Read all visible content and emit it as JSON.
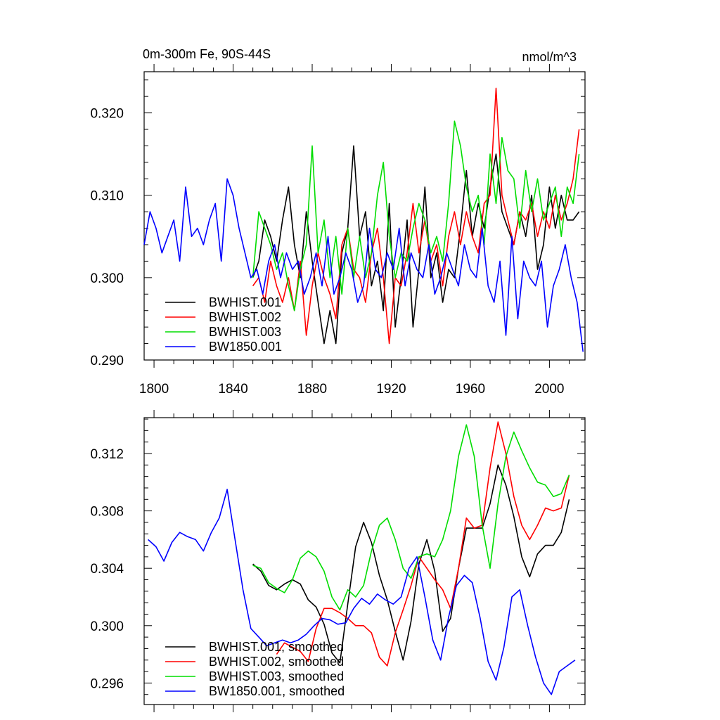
{
  "chart_data": [
    {
      "type": "line",
      "title": "0m-300m Fe, 90S-44S",
      "units": "nmol/m^3",
      "xlim": [
        1795,
        2018
      ],
      "ylim": [
        0.29,
        0.325
      ],
      "xticks": [
        1800,
        1840,
        1880,
        1920,
        1960,
        2000
      ],
      "yticks": [
        0.29,
        0.3,
        0.31,
        0.32
      ],
      "ytick_labels": [
        "0.290",
        "0.300",
        "0.310",
        "0.320"
      ],
      "legend_position": "bottom-left",
      "series": [
        {
          "name": "BWHIST.001",
          "color": "#000000",
          "x": [
            1850,
            1853,
            1856,
            1859,
            1862,
            1865,
            1868,
            1871,
            1874,
            1877,
            1880,
            1883,
            1886,
            1889,
            1892,
            1895,
            1898,
            1901,
            1904,
            1907,
            1910,
            1913,
            1916,
            1919,
            1922,
            1925,
            1928,
            1931,
            1934,
            1937,
            1940,
            1943,
            1946,
            1949,
            1952,
            1955,
            1958,
            1961,
            1964,
            1967,
            1970,
            1973,
            1976,
            1979,
            1982,
            1985,
            1988,
            1991,
            1994,
            1997,
            2000,
            2003,
            2006,
            2009,
            2012,
            2015
          ],
          "values": [
            0.3,
            0.302,
            0.307,
            0.305,
            0.302,
            0.307,
            0.311,
            0.304,
            0.3,
            0.308,
            0.302,
            0.297,
            0.292,
            0.296,
            0.292,
            0.303,
            0.306,
            0.316,
            0.305,
            0.308,
            0.299,
            0.302,
            0.296,
            0.309,
            0.294,
            0.3,
            0.307,
            0.294,
            0.301,
            0.311,
            0.3,
            0.303,
            0.297,
            0.301,
            0.3,
            0.306,
            0.313,
            0.305,
            0.309,
            0.306,
            0.311,
            0.315,
            0.308,
            0.306,
            0.304,
            0.308,
            0.305,
            0.31,
            0.301,
            0.304,
            0.311,
            0.306,
            0.31,
            0.307,
            0.307,
            0.308
          ]
        },
        {
          "name": "BWHIST.002",
          "color": "#ff0000",
          "x": [
            1850,
            1853,
            1856,
            1859,
            1862,
            1865,
            1868,
            1871,
            1874,
            1877,
            1880,
            1883,
            1886,
            1889,
            1892,
            1895,
            1898,
            1901,
            1904,
            1907,
            1910,
            1913,
            1916,
            1919,
            1922,
            1925,
            1928,
            1931,
            1934,
            1937,
            1940,
            1943,
            1946,
            1949,
            1952,
            1955,
            1958,
            1961,
            1964,
            1967,
            1970,
            1973,
            1976,
            1979,
            1982,
            1985,
            1988,
            1991,
            1994,
            1997,
            2000,
            2003,
            2006,
            2009,
            2012,
            2015
          ],
          "values": [
            0.299,
            0.3,
            0.297,
            0.302,
            0.299,
            0.297,
            0.3,
            0.296,
            0.302,
            0.293,
            0.299,
            0.303,
            0.3,
            0.298,
            0.295,
            0.304,
            0.306,
            0.301,
            0.3,
            0.297,
            0.303,
            0.306,
            0.3,
            0.292,
            0.3,
            0.299,
            0.303,
            0.309,
            0.303,
            0.307,
            0.302,
            0.304,
            0.299,
            0.305,
            0.308,
            0.304,
            0.308,
            0.305,
            0.303,
            0.309,
            0.31,
            0.323,
            0.31,
            0.307,
            0.304,
            0.308,
            0.307,
            0.309,
            0.305,
            0.308,
            0.306,
            0.31,
            0.307,
            0.309,
            0.312,
            0.318
          ]
        },
        {
          "name": "BWHIST.003",
          "color": "#00dd00",
          "x": [
            1850,
            1853,
            1856,
            1859,
            1862,
            1865,
            1868,
            1871,
            1874,
            1877,
            1880,
            1883,
            1886,
            1889,
            1892,
            1895,
            1898,
            1901,
            1904,
            1907,
            1910,
            1913,
            1916,
            1919,
            1922,
            1925,
            1928,
            1931,
            1934,
            1937,
            1940,
            1943,
            1946,
            1949,
            1952,
            1955,
            1958,
            1961,
            1964,
            1967,
            1970,
            1973,
            1976,
            1979,
            1982,
            1985,
            1988,
            1991,
            1994,
            1997,
            2000,
            2003,
            2006,
            2009,
            2012,
            2015
          ],
          "values": [
            0.3,
            0.308,
            0.306,
            0.304,
            0.301,
            0.303,
            0.299,
            0.296,
            0.301,
            0.304,
            0.316,
            0.303,
            0.307,
            0.3,
            0.305,
            0.298,
            0.306,
            0.3,
            0.305,
            0.3,
            0.303,
            0.31,
            0.314,
            0.305,
            0.3,
            0.303,
            0.302,
            0.306,
            0.309,
            0.307,
            0.303,
            0.305,
            0.302,
            0.309,
            0.319,
            0.316,
            0.311,
            0.308,
            0.31,
            0.304,
            0.315,
            0.309,
            0.317,
            0.313,
            0.312,
            0.306,
            0.313,
            0.308,
            0.312,
            0.307,
            0.309,
            0.311,
            0.305,
            0.311,
            0.309,
            0.315
          ]
        },
        {
          "name": "BW1850.001",
          "color": "#0000ff",
          "x": [
            1795,
            1798,
            1801,
            1804,
            1807,
            1810,
            1813,
            1816,
            1819,
            1822,
            1825,
            1828,
            1831,
            1834,
            1837,
            1840,
            1843,
            1846,
            1849,
            1852,
            1855,
            1858,
            1861,
            1864,
            1867,
            1870,
            1873,
            1876,
            1879,
            1882,
            1885,
            1888,
            1891,
            1894,
            1897,
            1900,
            1903,
            1906,
            1909,
            1912,
            1915,
            1918,
            1921,
            1924,
            1927,
            1930,
            1933,
            1936,
            1939,
            1942,
            1945,
            1948,
            1951,
            1954,
            1957,
            1960,
            1963,
            1966,
            1969,
            1972,
            1975,
            1978,
            1981,
            1984,
            1987,
            1990,
            1993,
            1996,
            1999,
            2002,
            2005,
            2008,
            2011,
            2014,
            2017
          ],
          "values": [
            0.304,
            0.308,
            0.306,
            0.303,
            0.305,
            0.307,
            0.302,
            0.311,
            0.305,
            0.306,
            0.304,
            0.307,
            0.309,
            0.302,
            0.312,
            0.31,
            0.306,
            0.303,
            0.3,
            0.301,
            0.298,
            0.302,
            0.304,
            0.3,
            0.303,
            0.301,
            0.302,
            0.298,
            0.3,
            0.303,
            0.299,
            0.305,
            0.298,
            0.3,
            0.303,
            0.301,
            0.297,
            0.299,
            0.306,
            0.301,
            0.3,
            0.303,
            0.301,
            0.306,
            0.299,
            0.303,
            0.301,
            0.3,
            0.304,
            0.298,
            0.3,
            0.303,
            0.301,
            0.299,
            0.304,
            0.301,
            0.3,
            0.306,
            0.299,
            0.297,
            0.302,
            0.293,
            0.305,
            0.295,
            0.302,
            0.3,
            0.299,
            0.302,
            0.294,
            0.299,
            0.301,
            0.304,
            0.3,
            0.297,
            0.291
          ]
        }
      ]
    },
    {
      "type": "line",
      "xlim": [
        1795,
        2018
      ],
      "ylim": [
        0.2945,
        0.3145
      ],
      "xticks": [
        1800,
        1840,
        1880,
        1920,
        1960,
        2000
      ],
      "yticks": [
        0.296,
        0.3,
        0.304,
        0.308,
        0.312
      ],
      "ytick_labels": [
        "0.296",
        "0.300",
        "0.304",
        "0.308",
        "0.312"
      ],
      "legend_position": "bottom-left",
      "series": [
        {
          "name": "BWHIST.001, smoothed",
          "color": "#000000",
          "x": [
            1850,
            1854,
            1858,
            1862,
            1866,
            1870,
            1874,
            1878,
            1882,
            1886,
            1890,
            1894,
            1898,
            1902,
            1906,
            1910,
            1914,
            1918,
            1922,
            1926,
            1930,
            1934,
            1938,
            1942,
            1946,
            1950,
            1954,
            1958,
            1962,
            1966,
            1970,
            1974,
            1978,
            1982,
            1986,
            1990,
            1994,
            1998,
            2002,
            2006,
            2010
          ],
          "values": [
            0.3043,
            0.3038,
            0.3028,
            0.3025,
            0.3029,
            0.3032,
            0.3029,
            0.3018,
            0.3013,
            0.3001,
            0.2981,
            0.2974,
            0.3015,
            0.3055,
            0.3072,
            0.3058,
            0.3035,
            0.3018,
            0.2996,
            0.2976,
            0.3003,
            0.3043,
            0.306,
            0.3038,
            0.2996,
            0.3005,
            0.304,
            0.3068,
            0.3068,
            0.3068,
            0.3085,
            0.3112,
            0.3098,
            0.3076,
            0.3048,
            0.3034,
            0.305,
            0.3056,
            0.3056,
            0.3065,
            0.3088
          ]
        },
        {
          "name": "BWHIST.002, smoothed",
          "color": "#ff0000",
          "x": [
            1862,
            1866,
            1870,
            1874,
            1878,
            1882,
            1886,
            1890,
            1894,
            1898,
            1902,
            1906,
            1910,
            1914,
            1918,
            1922,
            1926,
            1930,
            1934,
            1938,
            1942,
            1946,
            1950,
            1954,
            1958,
            1962,
            1966,
            1970,
            1974,
            1978,
            1982,
            1986,
            1990,
            1994,
            1998,
            2002,
            2006,
            2010
          ],
          "values": [
            0.298,
            0.2988,
            0.2985,
            0.2982,
            0.2975,
            0.2998,
            0.3012,
            0.3012,
            0.3009,
            0.3005,
            0.3,
            0.3,
            0.2995,
            0.2978,
            0.2972,
            0.2995,
            0.3011,
            0.3028,
            0.3048,
            0.304,
            0.3032,
            0.3025,
            0.3012,
            0.304,
            0.3075,
            0.3068,
            0.307,
            0.311,
            0.3142,
            0.312,
            0.309,
            0.307,
            0.306,
            0.307,
            0.3082,
            0.308,
            0.3082,
            0.3105
          ]
        },
        {
          "name": "BWHIST.003, smoothed",
          "color": "#00dd00",
          "x": [
            1850,
            1854,
            1858,
            1862,
            1866,
            1870,
            1874,
            1878,
            1882,
            1886,
            1890,
            1894,
            1898,
            1902,
            1906,
            1910,
            1914,
            1918,
            1922,
            1926,
            1930,
            1934,
            1938,
            1942,
            1946,
            1950,
            1954,
            1958,
            1962,
            1966,
            1970,
            1974,
            1978,
            1982,
            1986,
            1990,
            1994,
            1998,
            2002,
            2006,
            2010
          ],
          "values": [
            0.3042,
            0.304,
            0.303,
            0.3026,
            0.3023,
            0.3032,
            0.3047,
            0.3052,
            0.3048,
            0.3038,
            0.302,
            0.3011,
            0.3025,
            0.302,
            0.3028,
            0.3052,
            0.307,
            0.3075,
            0.306,
            0.304,
            0.3033,
            0.3048,
            0.305,
            0.3048,
            0.306,
            0.308,
            0.3118,
            0.314,
            0.3118,
            0.307,
            0.304,
            0.3085,
            0.3118,
            0.3135,
            0.3122,
            0.311,
            0.31,
            0.3098,
            0.309,
            0.3092,
            0.3105
          ]
        },
        {
          "name": "BW1850.001, smoothed",
          "color": "#0000ff",
          "x": [
            1797,
            1801,
            1805,
            1809,
            1813,
            1817,
            1821,
            1825,
            1829,
            1833,
            1837,
            1841,
            1845,
            1849,
            1853,
            1857,
            1861,
            1865,
            1869,
            1873,
            1877,
            1881,
            1885,
            1889,
            1893,
            1897,
            1901,
            1905,
            1909,
            1913,
            1917,
            1921,
            1925,
            1929,
            1933,
            1937,
            1941,
            1945,
            1949,
            1953,
            1957,
            1961,
            1965,
            1969,
            1973,
            1977,
            1981,
            1985,
            1989,
            1993,
            1997,
            2001,
            2005,
            2009,
            2013
          ],
          "values": [
            0.306,
            0.3055,
            0.3045,
            0.3058,
            0.3065,
            0.3062,
            0.306,
            0.3052,
            0.3065,
            0.3075,
            0.3095,
            0.306,
            0.3025,
            0.2998,
            0.2992,
            0.2986,
            0.2988,
            0.299,
            0.2988,
            0.299,
            0.2994,
            0.3,
            0.3005,
            0.3004,
            0.3001,
            0.3002,
            0.3012,
            0.3019,
            0.3015,
            0.3022,
            0.3018,
            0.3015,
            0.302,
            0.304,
            0.3048,
            0.302,
            0.299,
            0.2976,
            0.3006,
            0.3028,
            0.3035,
            0.303,
            0.3005,
            0.2975,
            0.2962,
            0.2985,
            0.302,
            0.3025,
            0.3,
            0.2978,
            0.296,
            0.2952,
            0.2968,
            0.2972,
            0.2976
          ]
        }
      ]
    }
  ]
}
